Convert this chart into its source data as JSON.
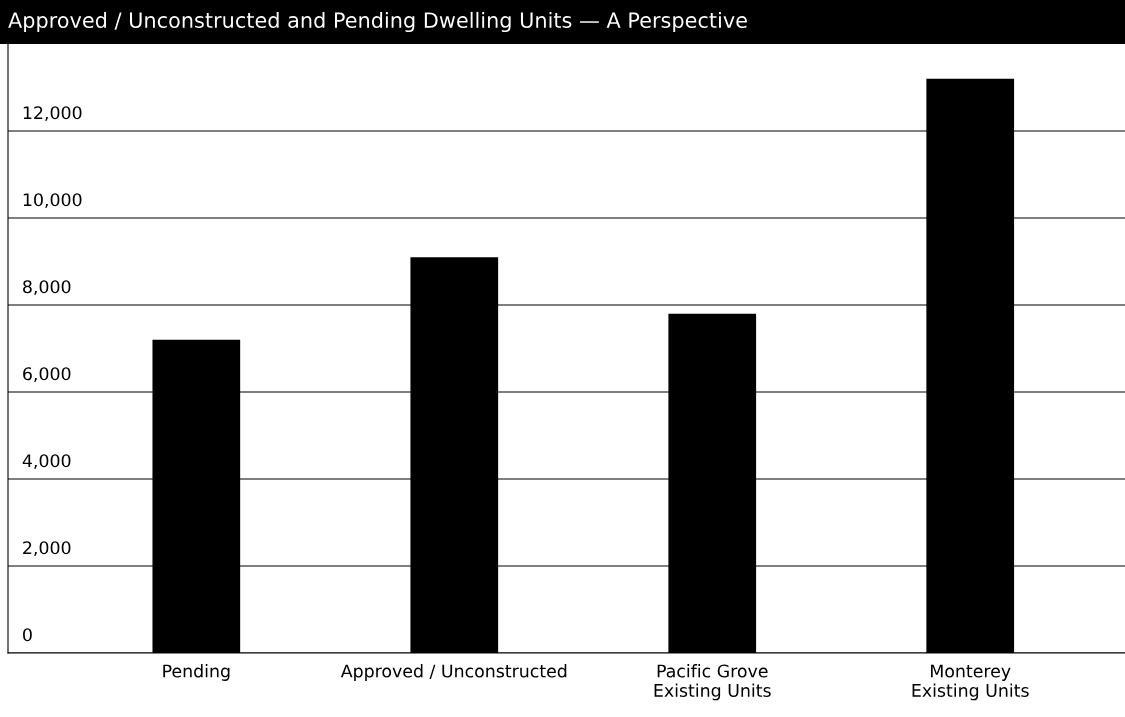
{
  "chart_data": {
    "type": "bar",
    "title": "Approved / Unconstructed and Pending Dwelling Units — A Perspective",
    "categories": [
      "Pending",
      "Approved / Unconstructed",
      "Pacific Grove\nExisting Units",
      "Monterey\nExisting Units"
    ],
    "values": [
      7200,
      9100,
      7800,
      13200
    ],
    "color": "#000000",
    "ylim": [
      0,
      14000
    ],
    "yticks": [
      {
        "value": 0,
        "label": "0"
      },
      {
        "value": 2000,
        "label": "2,000"
      },
      {
        "value": 4000,
        "label": "4,000"
      },
      {
        "value": 6000,
        "label": "6,000"
      },
      {
        "value": 8000,
        "label": "8,000"
      },
      {
        "value": 10000,
        "label": "10,000"
      },
      {
        "value": 12000,
        "label": "12,000"
      }
    ],
    "grid": "y",
    "legend": false
  }
}
